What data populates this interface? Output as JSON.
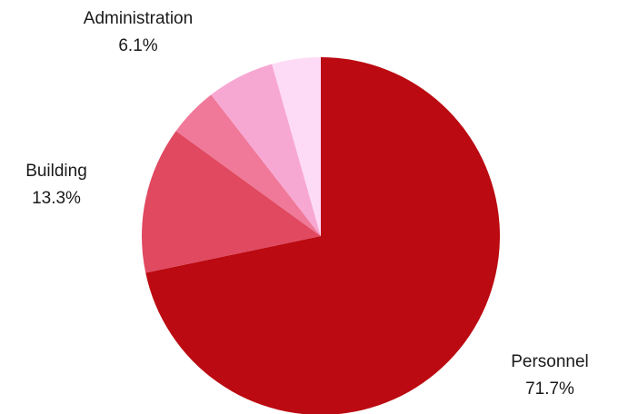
{
  "chart_data": {
    "type": "pie",
    "start": "top",
    "direction": "clockwise",
    "slices": [
      {
        "label": "Personnel",
        "value": 71.7,
        "value_label": "71.7%",
        "color": "#bb0a11"
      },
      {
        "label": "Building",
        "value": 13.3,
        "value_label": "13.3%",
        "color": "#e04960"
      },
      {
        "label": "",
        "value": 4.5,
        "value_label": "",
        "color": "#f07899"
      },
      {
        "label": "Administration",
        "value": 6.1,
        "value_label": "6.1%",
        "color": "#f7a8d2"
      },
      {
        "label": "",
        "value": 4.4,
        "value_label": "",
        "color": "#fddbf6"
      }
    ]
  },
  "labels": {
    "personnel": {
      "name": "Personnel",
      "pct": "71.7%"
    },
    "building": {
      "name": "Building",
      "pct": "13.3%"
    },
    "administration": {
      "name": "Administration",
      "pct": "6.1%"
    }
  }
}
